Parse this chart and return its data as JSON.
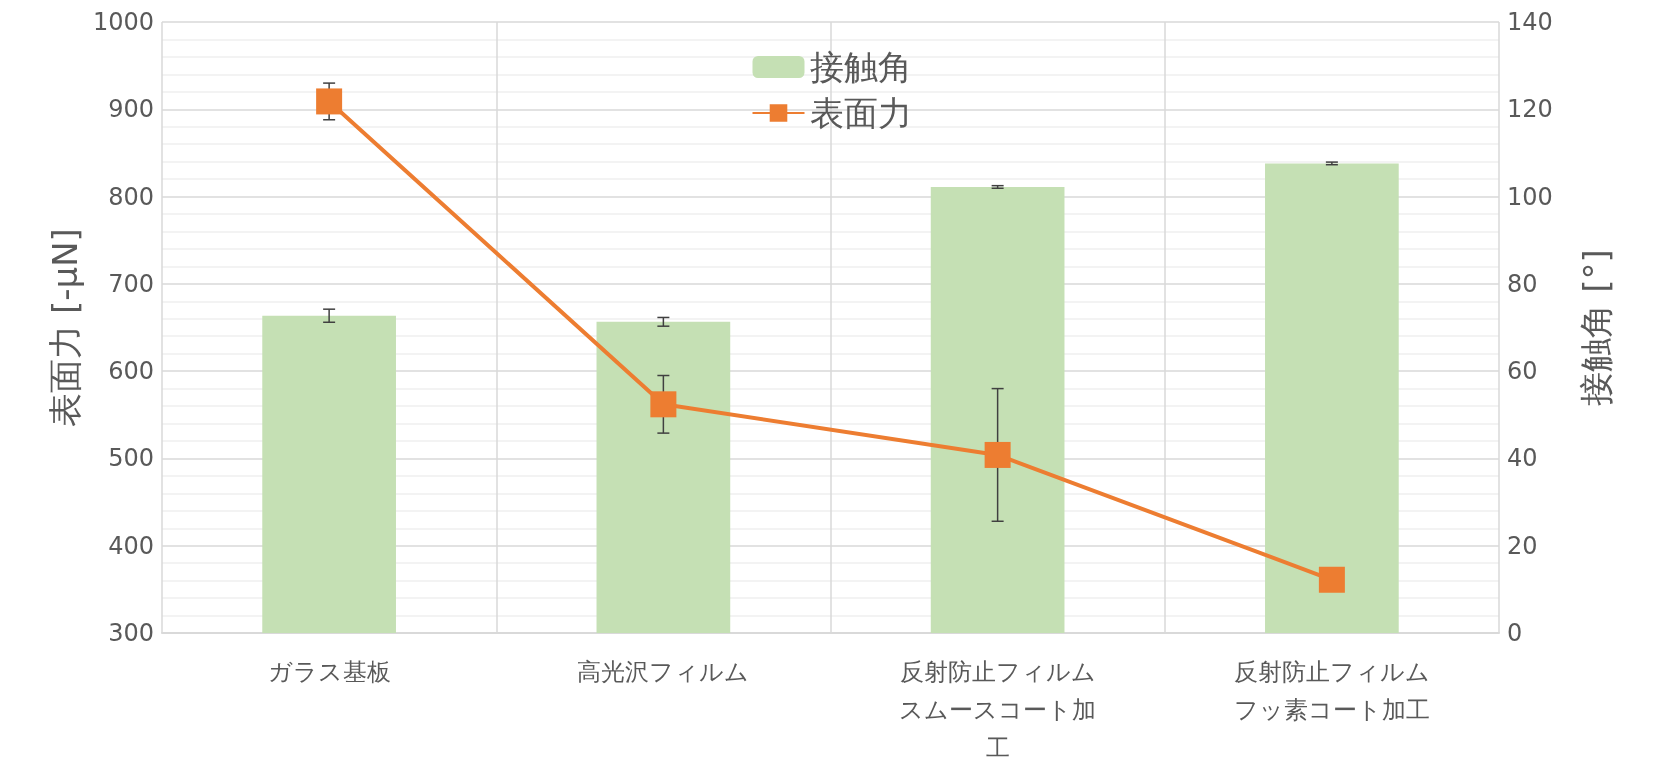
{
  "chart_data": {
    "type": "bar",
    "categories": [
      "ガラス基板",
      "高光沢フィルム",
      "反射防止フィルムスムースコート加工",
      "反射防止フィルムフッ素コート加工"
    ],
    "ylabel": "表面力 [-μN]",
    "y2label": "接触角 [°]",
    "ylim": [
      300,
      1000
    ],
    "yticks": [
      300,
      400,
      500,
      600,
      700,
      800,
      900,
      1000
    ],
    "y2lim": [
      0,
      140
    ],
    "y2ticks": [
      0,
      20,
      40,
      60,
      80,
      100,
      120,
      140
    ],
    "series": [
      {
        "name": "接触角",
        "axis": "y2",
        "color": "#c5e0b4",
        "values": [
          72.7,
          71.3,
          102.2,
          107.6
        ],
        "errors": [
          1.5,
          1,
          0.3,
          0.3
        ]
      },
      {
        "name": "表面力",
        "type": "line",
        "color": "#ed7d31",
        "marker": "square",
        "values": [
          909,
          562,
          504,
          361
        ],
        "errors": [
          21,
          33,
          76,
          null
        ]
      }
    ],
    "grid": true,
    "legend": "top"
  }
}
